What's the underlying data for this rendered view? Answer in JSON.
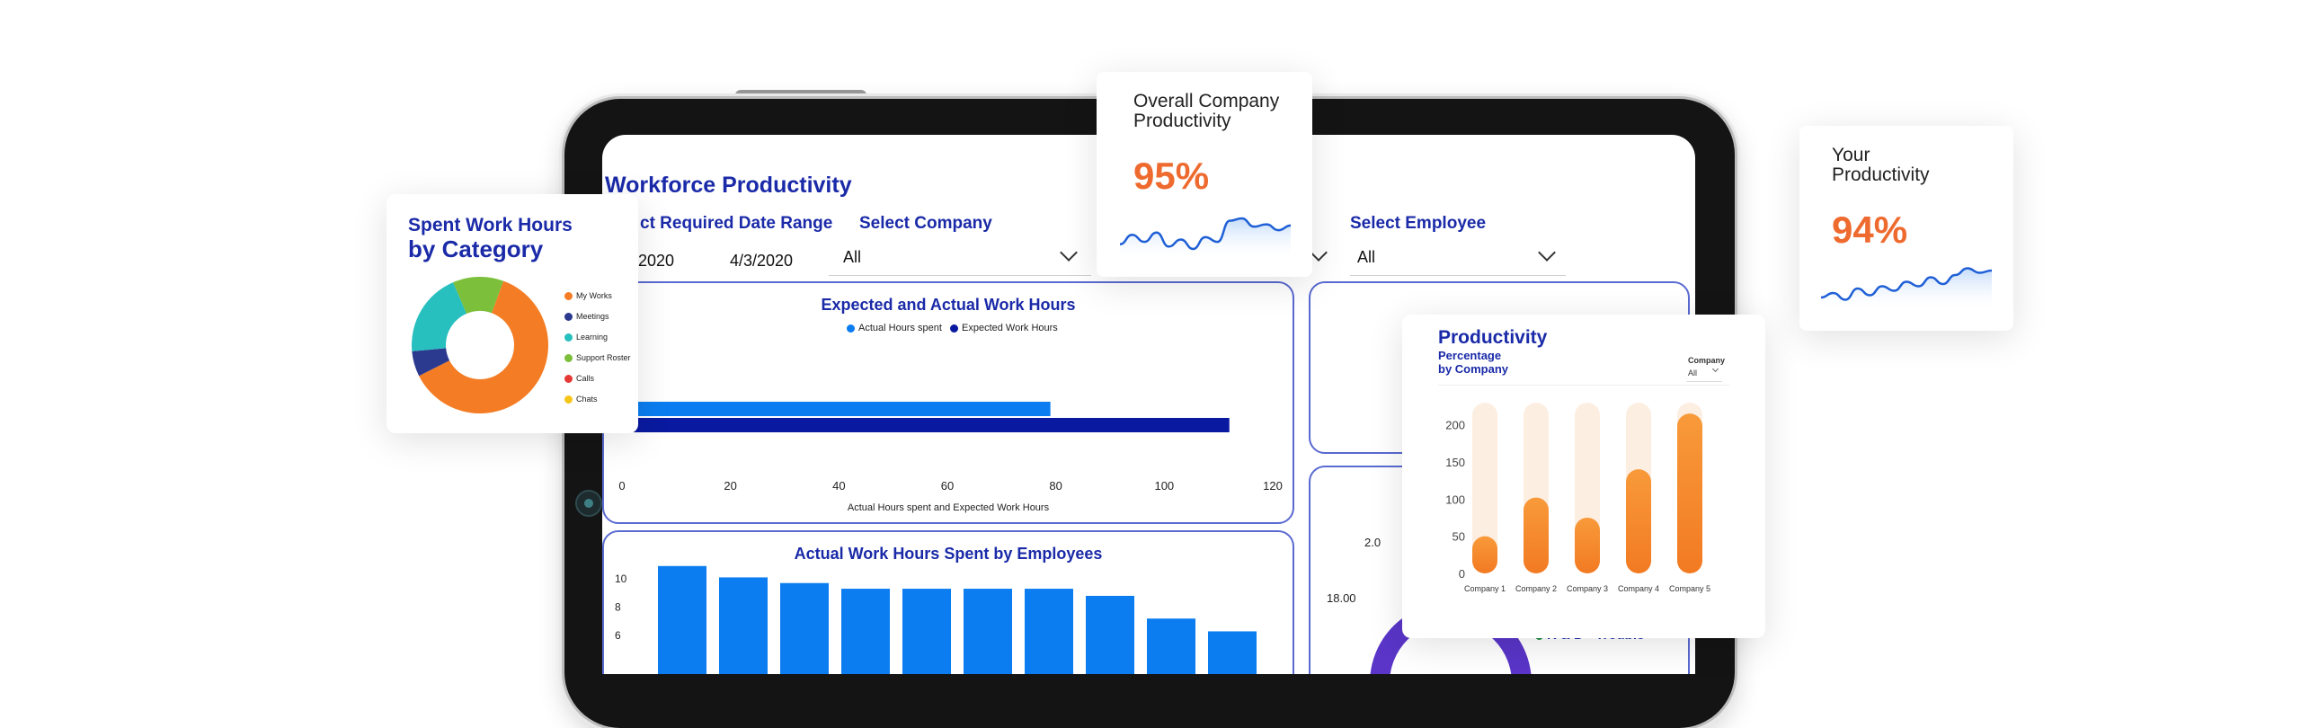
{
  "dashboard": {
    "title": "Workforce Productivity",
    "date_range": {
      "label": "ct Required Date Range",
      "start": "/1/2020",
      "end": "4/3/2020"
    },
    "company_filter": {
      "label": "Select Company",
      "value": "All"
    },
    "employee_filter": {
      "label": "Select Employee",
      "value": "All"
    },
    "expected_actual": {
      "title": "Expected and Actual Work Hours",
      "legend": [
        "Actual Hours spent",
        "Expected Work Hours"
      ],
      "xlabel": "Actual Hours spent and Expected Work Hours"
    },
    "employees_chart": {
      "title": "Actual Work Hours Spent by Employees"
    },
    "partial_labels": {
      "value_label": "18.00",
      "value_label2": "2.0",
      "rd_label": "R & D - Trouble"
    }
  },
  "cards": {
    "overall": {
      "title_line1": "Overall Company",
      "title_line2": "Productivity",
      "value": "95%"
    },
    "yours": {
      "title_line1": "Your",
      "title_line2": "Productivity",
      "value": "94%"
    },
    "category": {
      "title_line1": "Spent Work Hours",
      "title_line2": "by Category"
    },
    "productivity": {
      "title": "Productivity",
      "subtitle_line1": "Percentage",
      "subtitle_line2": "by Company",
      "filter_label": "Company",
      "filter_value": "All"
    }
  },
  "colors": {
    "accent": "#1a2aa8",
    "orange": "#f26a2e",
    "blue": "#0b7df0",
    "navy": "#0a1aa0"
  },
  "chart_data": [
    {
      "type": "bar",
      "orientation": "horizontal",
      "title": "Expected and Actual Work Hours",
      "series": [
        {
          "name": "Actual Hours spent",
          "values": [
            79
          ],
          "color": "#0b7df0"
        },
        {
          "name": "Expected Work Hours",
          "values": [
            112
          ],
          "color": "#0a1aa0"
        }
      ],
      "xlabel": "Actual Hours spent and Expected Work Hours",
      "xlim": [
        0,
        120
      ],
      "xticks": [
        "0",
        "20",
        "40",
        "60",
        "80",
        "100",
        "120"
      ]
    },
    {
      "type": "bar",
      "title": "Actual Work Hours Spent by Employees",
      "values": [
        10.9,
        10.1,
        9.7,
        9.3,
        9.3,
        9.3,
        9.3,
        8.8,
        7.2,
        6.3
      ],
      "ylim": [
        0,
        10
      ],
      "yticks": [
        "10",
        "8",
        "6"
      ],
      "color": "#0b7df0"
    },
    {
      "type": "pie",
      "title": "Spent Work Hours by Category",
      "categories": [
        "My Works",
        "Meetings",
        "Learning",
        "Support Roster",
        "Calls",
        "Chats"
      ],
      "values": [
        62,
        6,
        20,
        12,
        0,
        0
      ],
      "colors": [
        "#f47c24",
        "#2b3a8f",
        "#28bfbf",
        "#7cbf3a",
        "#e53935",
        "#f5c518"
      ]
    },
    {
      "type": "bar",
      "title": "Productivity",
      "categories": [
        "Company 1",
        "Company 2",
        "Company 3",
        "Company 4",
        "Company 5"
      ],
      "values": [
        50,
        102,
        75,
        140,
        215
      ],
      "ylim": [
        0,
        220
      ],
      "yticks": [
        "200",
        "150",
        "100",
        "50",
        "0"
      ],
      "color": "#f7892d"
    },
    {
      "type": "line",
      "title": "Overall Company Productivity",
      "values": [
        40,
        48,
        42,
        50,
        38,
        44,
        36,
        46,
        42,
        60,
        62,
        55,
        57,
        52,
        56
      ]
    },
    {
      "type": "line",
      "title": "Your Productivity",
      "values": [
        38,
        42,
        36,
        46,
        40,
        48,
        44,
        52,
        48,
        56,
        50,
        58,
        64,
        60,
        62
      ]
    }
  ]
}
